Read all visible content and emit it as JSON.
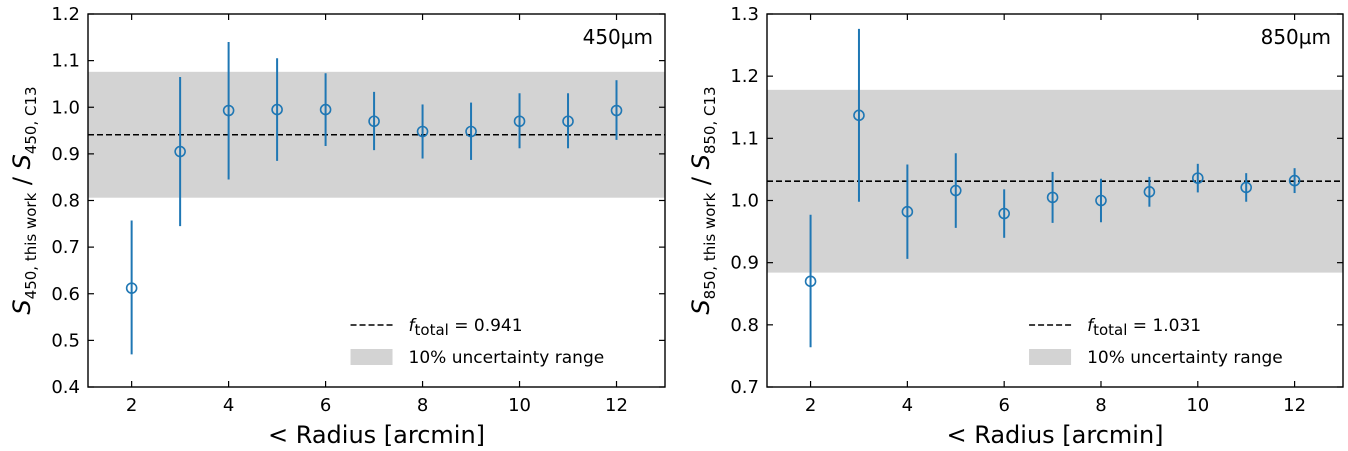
{
  "chart_data": [
    {
      "type": "scatter",
      "panel_label": "450µm",
      "xlabel": "< Radius [arcmin]",
      "ylabel": {
        "main": "S",
        "sub1": "450, this work",
        "sep": " / ",
        "main2": "S",
        "sub2": "450, C13"
      },
      "xlim": [
        1.1,
        13.0
      ],
      "ylim": [
        0.4,
        1.2
      ],
      "xticks": [
        2,
        4,
        6,
        8,
        10,
        12
      ],
      "xtick_labels": [
        "2",
        "4",
        "6",
        "8",
        "10",
        "12"
      ],
      "yticks": [
        0.4,
        0.5,
        0.6,
        0.7,
        0.8,
        0.9,
        1.0,
        1.1,
        1.2
      ],
      "ytick_labels": [
        "0.4",
        "0.5",
        "0.6",
        "0.7",
        "0.8",
        "0.9",
        "1.0",
        "1.1",
        "1.2"
      ],
      "points": [
        {
          "x": 2,
          "y": 0.612,
          "lo": 0.47,
          "hi": 0.757
        },
        {
          "x": 3,
          "y": 0.905,
          "lo": 0.745,
          "hi": 1.065
        },
        {
          "x": 4,
          "y": 0.993,
          "lo": 0.845,
          "hi": 1.14
        },
        {
          "x": 5,
          "y": 0.995,
          "lo": 0.885,
          "hi": 1.105
        },
        {
          "x": 6,
          "y": 0.995,
          "lo": 0.917,
          "hi": 1.073
        },
        {
          "x": 7,
          "y": 0.97,
          "lo": 0.908,
          "hi": 1.033
        },
        {
          "x": 8,
          "y": 0.948,
          "lo": 0.89,
          "hi": 1.006
        },
        {
          "x": 9,
          "y": 0.948,
          "lo": 0.887,
          "hi": 1.01
        },
        {
          "x": 10,
          "y": 0.97,
          "lo": 0.912,
          "hi": 1.03
        },
        {
          "x": 11,
          "y": 0.97,
          "lo": 0.912,
          "hi": 1.03
        },
        {
          "x": 12,
          "y": 0.993,
          "lo": 0.93,
          "hi": 1.058
        }
      ],
      "reference_line": {
        "value": 0.941,
        "label_main": "f",
        "label_sub": "total",
        "label_value": "= 0.941",
        "style": "dashed"
      },
      "band": {
        "low": 0.806,
        "high": 1.076,
        "label": "10% uncertainty range"
      },
      "legend_position": "lower-right"
    },
    {
      "type": "scatter",
      "panel_label": "850µm",
      "xlabel": "< Radius [arcmin]",
      "ylabel": {
        "main": "S",
        "sub1": "850, this work",
        "sep": " / ",
        "main2": "S",
        "sub2": "850, C13"
      },
      "xlim": [
        1.1,
        13.0
      ],
      "ylim": [
        0.7,
        1.3
      ],
      "xticks": [
        2,
        4,
        6,
        8,
        10,
        12
      ],
      "xtick_labels": [
        "2",
        "4",
        "6",
        "8",
        "10",
        "12"
      ],
      "yticks": [
        0.7,
        0.8,
        0.9,
        1.0,
        1.1,
        1.2,
        1.3
      ],
      "ytick_labels": [
        "0.7",
        "0.8",
        "0.9",
        "1.0",
        "1.1",
        "1.2",
        "1.3"
      ],
      "points": [
        {
          "x": 2,
          "y": 0.87,
          "lo": 0.764,
          "hi": 0.977
        },
        {
          "x": 3,
          "y": 1.137,
          "lo": 0.998,
          "hi": 1.276
        },
        {
          "x": 4,
          "y": 0.982,
          "lo": 0.906,
          "hi": 1.058
        },
        {
          "x": 5,
          "y": 1.016,
          "lo": 0.956,
          "hi": 1.076
        },
        {
          "x": 6,
          "y": 0.979,
          "lo": 0.94,
          "hi": 1.018
        },
        {
          "x": 7,
          "y": 1.005,
          "lo": 0.964,
          "hi": 1.046
        },
        {
          "x": 8,
          "y": 1.0,
          "lo": 0.965,
          "hi": 1.035
        },
        {
          "x": 9,
          "y": 1.014,
          "lo": 0.99,
          "hi": 1.038
        },
        {
          "x": 10,
          "y": 1.036,
          "lo": 1.013,
          "hi": 1.059
        },
        {
          "x": 11,
          "y": 1.021,
          "lo": 0.998,
          "hi": 1.044
        },
        {
          "x": 12,
          "y": 1.032,
          "lo": 1.012,
          "hi": 1.052
        }
      ],
      "reference_line": {
        "value": 1.031,
        "label_main": "f",
        "label_sub": "total",
        "label_value": "= 1.031",
        "style": "dashed"
      },
      "band": {
        "low": 0.884,
        "high": 1.178,
        "label": "10% uncertainty range"
      },
      "legend_position": "lower-right"
    }
  ],
  "colors": {
    "points": "#1f77b4",
    "band": "#d3d3d3",
    "line": "#000000"
  }
}
